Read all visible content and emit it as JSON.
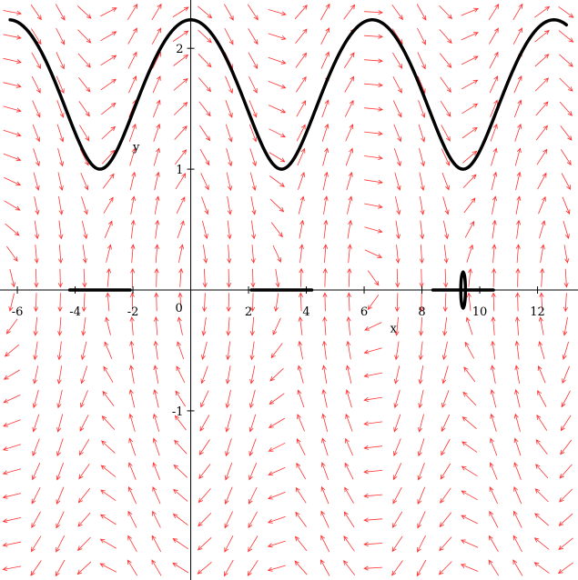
{
  "chart_data": {
    "type": "line",
    "title": "",
    "xlabel": "x",
    "ylabel": "y",
    "xlim": [
      -6.6,
      13.4
    ],
    "ylim": [
      -2.4,
      2.4
    ],
    "grid": false,
    "legend": "none",
    "x_ticks": [
      {
        "value": -6,
        "label": "-6"
      },
      {
        "value": -4,
        "label": "-4"
      },
      {
        "value": -2,
        "label": "-2"
      },
      {
        "value": 2,
        "label": "2"
      },
      {
        "value": 4,
        "label": "4"
      },
      {
        "value": 6,
        "label": "6"
      },
      {
        "value": 8,
        "label": "8"
      },
      {
        "value": 10,
        "label": "10"
      },
      {
        "value": 12,
        "label": "12"
      }
    ],
    "y_ticks": [
      {
        "value": 2,
        "label": "2"
      },
      {
        "value": 1,
        "label": "1"
      },
      {
        "value": -1,
        "label": "-1"
      }
    ],
    "origin_label": "0",
    "direction_field": {
      "system": "dx/dt = y, dy/dt = -sin(x)",
      "x_range": [
        -6.6,
        13.4
      ],
      "y_range": [
        -2.4,
        2.4
      ],
      "color": "#ff3333"
    },
    "series": [
      {
        "kind": "running",
        "energy": 0.5,
        "x_range": [
          -6.25,
          13.0
        ]
      },
      {
        "kind": "closed",
        "energy": 1.5,
        "centers": [
          -3.1416,
          3.1416,
          9.4248
        ]
      },
      {
        "kind": "closed",
        "energy": 2.5,
        "centers": [
          -3.1416,
          3.1416,
          9.4248
        ]
      },
      {
        "kind": "closed",
        "energy": 1.85,
        "centers": [
          9.4248
        ],
        "y_amp": 0.15,
        "x_amp": 0.08
      }
    ],
    "curve_color": "#000000"
  }
}
